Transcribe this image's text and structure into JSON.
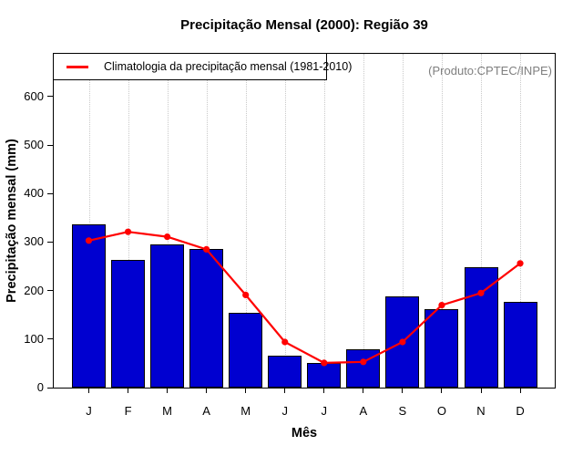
{
  "chart_data": {
    "type": "bar",
    "title": "Precipitação Mensal (2000): Região 39",
    "xlabel": "Mês",
    "ylabel": "Precipitação mensal (mm)",
    "categories": [
      "J",
      "F",
      "M",
      "A",
      "M",
      "J",
      "J",
      "A",
      "S",
      "O",
      "N",
      "D"
    ],
    "series": [
      {
        "name": "Precipitação mensal (2000)",
        "type": "bar",
        "color": "#0000d0",
        "values": [
          337,
          263,
          295,
          286,
          155,
          65,
          50,
          79,
          188,
          162,
          248,
          177
        ]
      },
      {
        "name": "Climatologia da precipitação mensal (1981-2010)",
        "type": "line",
        "color": "#ff0000",
        "values": [
          303,
          321,
          311,
          285,
          191,
          94,
          51,
          53,
          94,
          170,
          195,
          256
        ]
      }
    ],
    "ylim": [
      0,
      688
    ],
    "yticks": [
      0,
      100,
      200,
      300,
      400,
      500,
      600
    ],
    "grid": "vertical dotted line at each month",
    "legend_position": "top-left"
  },
  "watermark": {
    "text": "(Produto:CPTEC/INPE)",
    "color": "#7f7f7f"
  }
}
